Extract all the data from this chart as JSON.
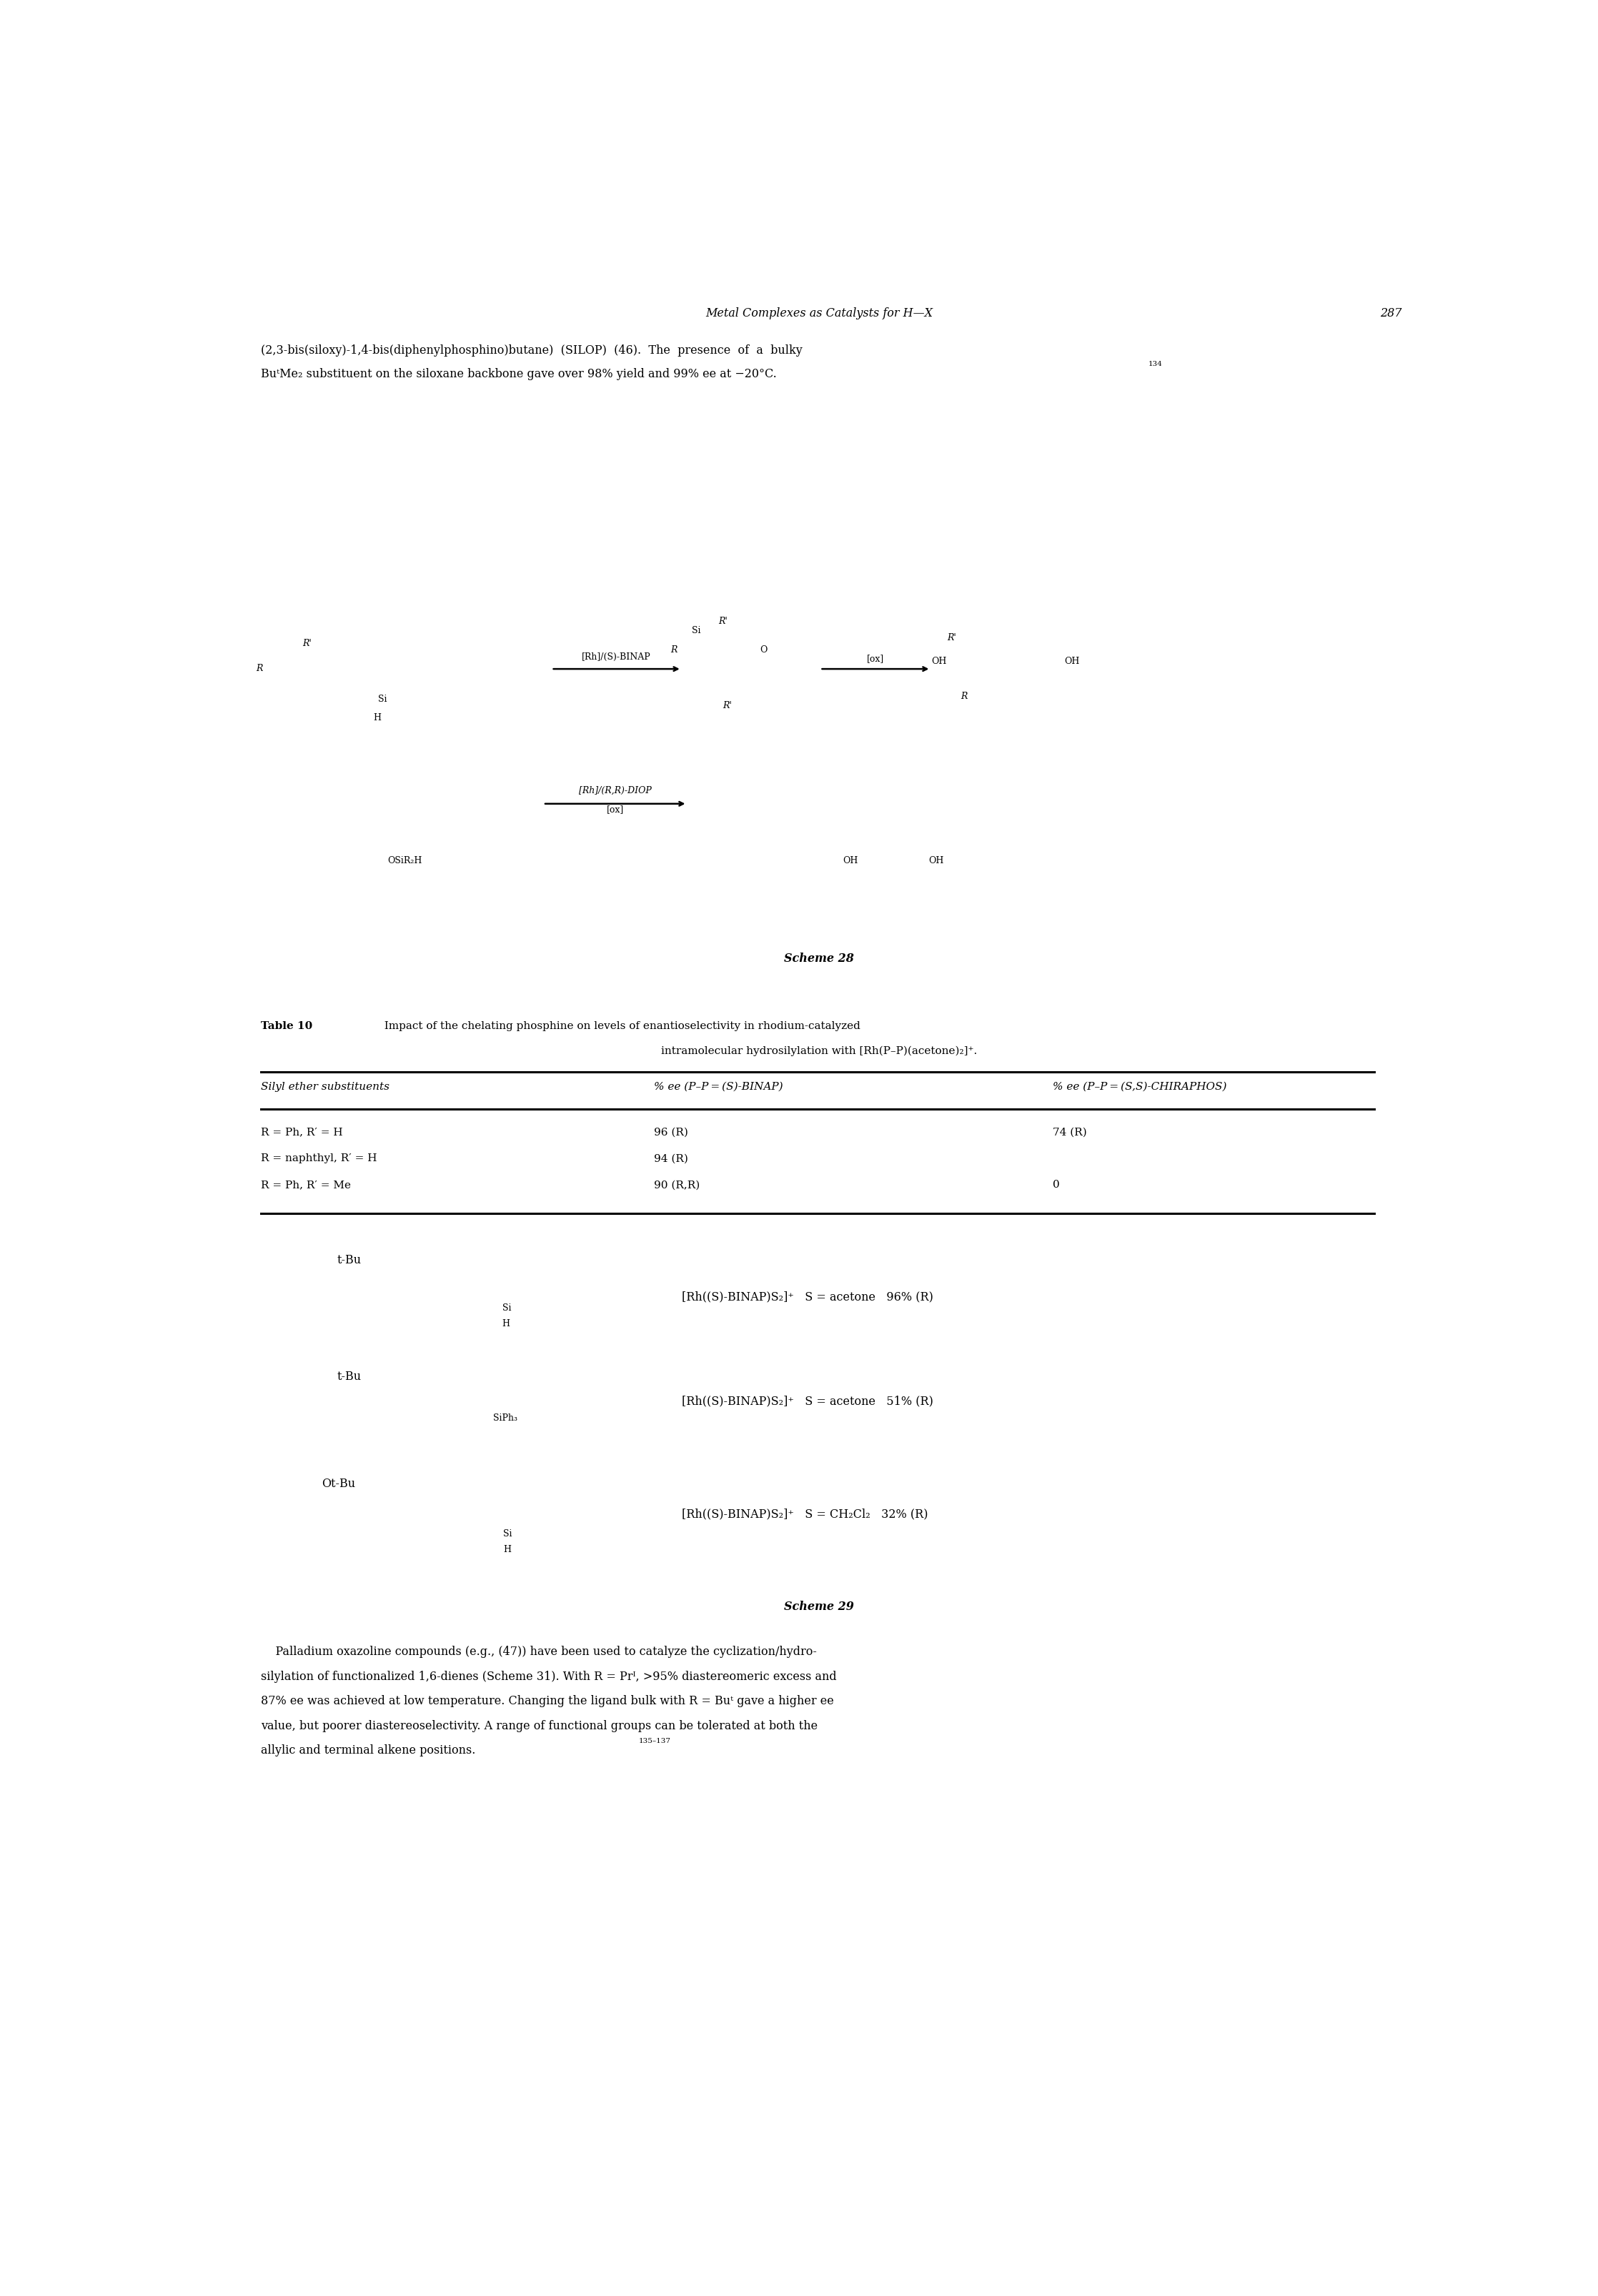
{
  "page_width": 22.36,
  "page_height": 32.13,
  "bg_color": "#ffffff",
  "header_italic": "Metal Complexes as Catalysts for H—X",
  "header_page": "287",
  "intro_text_line1": "(2,3-bis(siloxy)-1,4-bis(diphenylphosphino)butane)  (SILOP)  (46).  The  presence  of  a  bulky",
  "intro_text_line2": "BuᵗMe₂ substituent on the siloxane backbone gave over 98% yield and 99% ee at −20°C.",
  "intro_ref": "134",
  "scheme28_label": "Scheme 28",
  "table_title_bold": "Table 10",
  "table_title_rest": "  Impact of the chelating phosphine on levels of enantioselectivity in rhodium-catalyzed",
  "table_title_line2": "intramolecular hydrosilylation with [Rh(P–P)(acetone)₂]⁺.",
  "col1_header": "Silyl ether substituents",
  "col2_header": "% ee (P–P = (S)-BINAP)",
  "col3_header": "% ee (P–P = (S,S)-CHIRAPHOS)",
  "row1_col1": "R = Ph, R′ = H",
  "row1_col2": "96 (R)",
  "row1_col3": "74 (R)",
  "row2_col1": "R = naphthyl, R′ = H",
  "row2_col2": "94 (R)",
  "row2_col3": "",
  "row3_col1": "R = Ph, R′ = Me",
  "row3_col2": "90 (R,R)",
  "row3_col3": "0",
  "scheme29_label": "Scheme 29",
  "para_ref": "135–137"
}
